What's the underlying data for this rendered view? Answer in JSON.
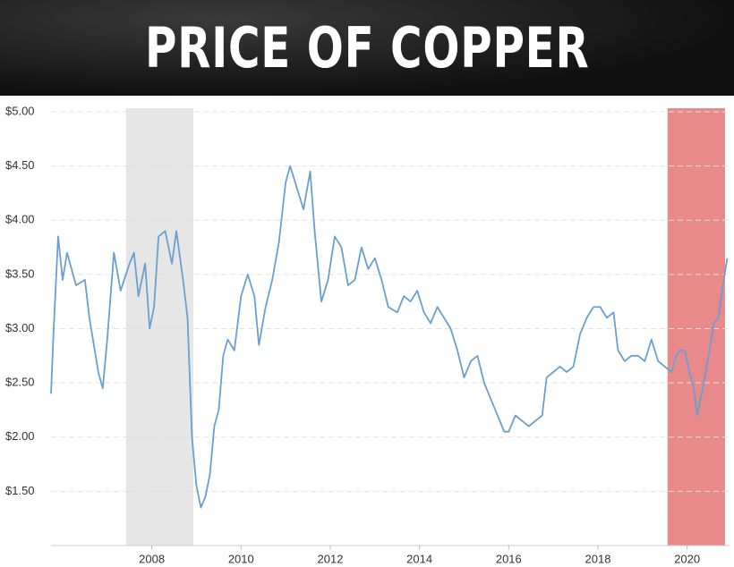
{
  "chart_data": {
    "type": "line",
    "title": "PRICE OF COPPER",
    "x": [
      2005.74,
      2005.8,
      2005.9,
      2006.0,
      2006.1,
      2006.3,
      2006.5,
      2006.6,
      2006.8,
      2006.9,
      2007.0,
      2007.15,
      2007.3,
      2007.5,
      2007.6,
      2007.7,
      2007.85,
      2007.95,
      2008.05,
      2008.15,
      2008.3,
      2008.45,
      2008.55,
      2008.7,
      2008.8,
      2008.9,
      2009.0,
      2009.1,
      2009.2,
      2009.3,
      2009.4,
      2009.5,
      2009.6,
      2009.7,
      2009.85,
      2010.0,
      2010.15,
      2010.3,
      2010.4,
      2010.55,
      2010.7,
      2010.85,
      2011.0,
      2011.1,
      2011.25,
      2011.4,
      2011.55,
      2011.65,
      2011.8,
      2011.95,
      2012.1,
      2012.25,
      2012.4,
      2012.55,
      2012.7,
      2012.85,
      2013.0,
      2013.15,
      2013.3,
      2013.5,
      2013.65,
      2013.8,
      2013.95,
      2014.1,
      2014.25,
      2014.4,
      2014.55,
      2014.7,
      2014.85,
      2015.0,
      2015.15,
      2015.3,
      2015.45,
      2015.6,
      2015.75,
      2015.9,
      2016.0,
      2016.15,
      2016.3,
      2016.45,
      2016.6,
      2016.75,
      2016.85,
      2017.0,
      2017.15,
      2017.3,
      2017.45,
      2017.6,
      2017.75,
      2017.9,
      2018.05,
      2018.2,
      2018.35,
      2018.45,
      2018.6,
      2018.75,
      2018.9,
      2019.05,
      2019.2,
      2019.35,
      2019.5,
      2019.65,
      2019.75,
      2019.85,
      2019.95,
      2020.05,
      2020.15,
      2020.22,
      2020.35,
      2020.5,
      2020.6,
      2020.7,
      2020.8,
      2020.9
    ],
    "series": [
      {
        "color": "#6a9fd1",
        "values": [
          2.4,
          3.0,
          3.85,
          3.45,
          3.7,
          3.4,
          3.45,
          3.1,
          2.6,
          2.45,
          2.9,
          3.7,
          3.35,
          3.6,
          3.7,
          3.3,
          3.6,
          3.0,
          3.2,
          3.85,
          3.9,
          3.6,
          3.9,
          3.45,
          3.1,
          2.0,
          1.55,
          1.35,
          1.45,
          1.65,
          2.1,
          2.25,
          2.75,
          2.9,
          2.8,
          3.3,
          3.5,
          3.3,
          2.85,
          3.2,
          3.45,
          3.8,
          4.35,
          4.5,
          4.3,
          4.1,
          4.45,
          3.9,
          3.25,
          3.45,
          3.85,
          3.75,
          3.4,
          3.45,
          3.75,
          3.55,
          3.65,
          3.45,
          3.2,
          3.15,
          3.3,
          3.25,
          3.35,
          3.15,
          3.05,
          3.2,
          3.1,
          3.0,
          2.8,
          2.55,
          2.7,
          2.75,
          2.5,
          2.35,
          2.2,
          2.05,
          2.05,
          2.2,
          2.15,
          2.1,
          2.15,
          2.2,
          2.55,
          2.6,
          2.65,
          2.6,
          2.65,
          2.95,
          3.1,
          3.2,
          3.2,
          3.1,
          3.15,
          2.8,
          2.7,
          2.75,
          2.75,
          2.7,
          2.9,
          2.7,
          2.65,
          2.6,
          2.75,
          2.8,
          2.8,
          2.6,
          2.45,
          2.2,
          2.45,
          2.8,
          3.05,
          3.1,
          3.4,
          3.65
        ]
      }
    ],
    "xlim": [
      2005.74,
      2020.95
    ],
    "ylim": [
      1.0,
      5.0
    ],
    "xticks": [
      2008,
      2010,
      2012,
      2014,
      2016,
      2018,
      2020
    ],
    "yticks": [
      {
        "value": 1.5,
        "label": "$1.50"
      },
      {
        "value": 2.0,
        "label": "$2.00"
      },
      {
        "value": 2.5,
        "label": "$2.50"
      },
      {
        "value": 3.0,
        "label": "$3.00"
      },
      {
        "value": 3.5,
        "label": "$3.50"
      },
      {
        "value": 4.0,
        "label": "$4.00"
      },
      {
        "value": 4.5,
        "label": "$4.50"
      },
      {
        "value": 5.0,
        "label": "$5.00"
      }
    ],
    "grid": true,
    "highlights": [
      {
        "xlim": [
          2007.42,
          2008.93
        ],
        "color": "#e6e6e6"
      },
      {
        "xlim": [
          2019.56,
          2020.85
        ],
        "color": "#e88a8a"
      }
    ]
  }
}
